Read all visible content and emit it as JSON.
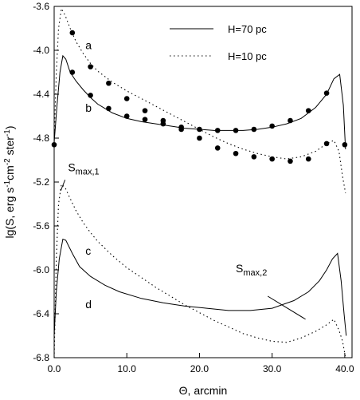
{
  "chart_data": {
    "type": "line",
    "xlabel": "Θ, arcmin",
    "ylabel_parts": [
      "lg(S, erg s",
      "-1",
      "cm",
      "-2",
      " ster",
      "-1",
      ")"
    ],
    "xlim": [
      0,
      41
    ],
    "ylim": [
      -6.8,
      -3.6
    ],
    "xticks": [
      0,
      10,
      20,
      30,
      40
    ],
    "xtick_labels": [
      "0.0",
      "10.0",
      "20.0",
      "30.0",
      "40.0"
    ],
    "yticks": [
      -6.8,
      -6.4,
      -6.0,
      -5.6,
      -5.2,
      -4.8,
      -4.4,
      -4.0,
      -3.6
    ],
    "ytick_labels": [
      "-6.8",
      "-6.4",
      "-6.0",
      "-5.6",
      "-5.2",
      "-4.8",
      "-4.4",
      "-4.0",
      "-3.6"
    ],
    "grid": false,
    "legend": {
      "placement": "top-right",
      "items": [
        {
          "label": "H=70 pc",
          "style": "solid"
        },
        {
          "label": "H=10 pc",
          "style": "dotted"
        }
      ]
    },
    "series": [
      {
        "name": "H=70 pc",
        "style": "solid",
        "x": [
          0.0,
          0.4,
          0.8,
          1.2,
          1.6,
          2.2,
          3.0,
          4.0,
          5.0,
          6.0,
          7.0,
          8.0,
          10.0,
          12.0,
          14.0,
          16.0,
          18.0,
          20.0,
          22.0,
          24.0,
          26.0,
          28.0,
          30.0,
          32.0,
          34.0,
          36.0,
          37.5,
          38.5,
          39.3,
          39.8,
          40.1
        ],
        "y": [
          -4.84,
          -4.5,
          -4.2,
          -4.05,
          -4.08,
          -4.2,
          -4.28,
          -4.36,
          -4.43,
          -4.49,
          -4.53,
          -4.57,
          -4.62,
          -4.65,
          -4.67,
          -4.69,
          -4.71,
          -4.72,
          -4.73,
          -4.73,
          -4.73,
          -4.72,
          -4.7,
          -4.67,
          -4.62,
          -4.52,
          -4.4,
          -4.26,
          -4.22,
          -4.5,
          -4.9
        ]
      },
      {
        "name": "H=10 pc",
        "style": "dotted",
        "x": [
          0.0,
          0.3,
          0.6,
          1.0,
          1.5,
          2.2,
          3.0,
          4.0,
          5.0,
          6.0,
          8.0,
          10.0,
          12.0,
          14.0,
          16.0,
          18.0,
          20.0,
          22.0,
          24.0,
          26.0,
          28.0,
          30.0,
          32.0,
          34.0,
          36.0,
          37.5,
          38.5,
          39.2,
          39.7,
          40.1
        ],
        "y": [
          -4.84,
          -4.2,
          -3.8,
          -3.62,
          -3.68,
          -3.8,
          -3.92,
          -4.03,
          -4.12,
          -4.19,
          -4.29,
          -4.37,
          -4.44,
          -4.51,
          -4.58,
          -4.65,
          -4.72,
          -4.79,
          -4.85,
          -4.9,
          -4.94,
          -4.97,
          -4.99,
          -4.97,
          -4.92,
          -4.85,
          -4.82,
          -4.92,
          -5.15,
          -5.3
        ]
      },
      {
        "name": "a (measured)",
        "style": "markers",
        "x": [
          2.5,
          5.0,
          7.5,
          10.0,
          12.5,
          15.0,
          17.5,
          20.0,
          22.5,
          25.0,
          27.5,
          30.0,
          32.5,
          35.0,
          37.5,
          40.0
        ],
        "y": [
          -3.84,
          -4.15,
          -4.3,
          -4.44,
          -4.55,
          -4.64,
          -4.72,
          -4.8,
          -4.89,
          -4.94,
          -4.97,
          -4.99,
          -5.01,
          -4.99,
          -4.85,
          -4.86
        ]
      },
      {
        "name": "b (measured)",
        "style": "markers",
        "x": [
          0.0,
          2.5,
          5.0,
          7.5,
          10.0,
          12.5,
          15.0,
          17.5,
          20.0,
          22.5,
          25.0,
          27.5,
          30.0,
          32.5,
          35.0,
          37.5
        ],
        "y": [
          -4.86,
          -4.2,
          -4.41,
          -4.53,
          -4.6,
          -4.63,
          -4.67,
          -4.7,
          -4.72,
          -4.73,
          -4.73,
          -4.72,
          -4.69,
          -4.64,
          -4.55,
          -4.39
        ]
      },
      {
        "name": "H=70 pc lower",
        "style": "solid",
        "x": [
          0.0,
          0.3,
          0.7,
          1.2,
          1.6,
          2.5,
          3.5,
          5.0,
          7.0,
          9.0,
          12.0,
          15.0,
          18.0,
          21.0,
          24.0,
          27.0,
          30.0,
          33.0,
          35.0,
          36.5,
          37.5,
          38.3,
          39.0,
          39.5,
          39.9,
          40.2
        ],
        "y": [
          -6.6,
          -6.2,
          -5.9,
          -5.72,
          -5.73,
          -5.85,
          -5.97,
          -6.06,
          -6.14,
          -6.2,
          -6.26,
          -6.3,
          -6.33,
          -6.35,
          -6.37,
          -6.37,
          -6.35,
          -6.28,
          -6.2,
          -6.1,
          -6.0,
          -5.9,
          -5.85,
          -6.1,
          -6.4,
          -6.6
        ]
      },
      {
        "name": "H=10 pc lower",
        "style": "dotted",
        "x": [
          0.0,
          0.3,
          0.6,
          1.0,
          1.5,
          2.2,
          3.0,
          4.0,
          5.0,
          6.0,
          8.0,
          10.0,
          12.0,
          14.0,
          16.0,
          18.0,
          20.0,
          22.0,
          24.0,
          26.0,
          28.0,
          30.0,
          32.0,
          34.0,
          36.0,
          37.5,
          38.5,
          39.2,
          39.7,
          40.1
        ],
        "y": [
          -6.8,
          -5.9,
          -5.4,
          -5.22,
          -5.25,
          -5.35,
          -5.46,
          -5.57,
          -5.66,
          -5.74,
          -5.87,
          -5.98,
          -6.07,
          -6.16,
          -6.24,
          -6.32,
          -6.39,
          -6.46,
          -6.52,
          -6.58,
          -6.62,
          -6.65,
          -6.66,
          -6.62,
          -6.56,
          -6.5,
          -6.45,
          -6.55,
          -6.65,
          -6.8
        ]
      }
    ],
    "annotations": [
      {
        "label": "a",
        "x": 4.3,
        "y": -3.99
      },
      {
        "label": "b",
        "x": 4.3,
        "y": -4.56
      },
      {
        "label": "c",
        "x": 4.3,
        "y": -5.86
      },
      {
        "label": "d",
        "x": 4.3,
        "y": -6.35
      }
    ],
    "callouts": [
      {
        "main": "S",
        "sub": "max,1",
        "x": 1.9,
        "y": -5.1,
        "x1": 1.5,
        "y1": -5.18,
        "x2": 0.9,
        "y2": -5.28
      },
      {
        "main": "S",
        "sub": "max,2",
        "x": 25.0,
        "y": -6.02,
        "x1": 29.4,
        "y1": -6.24,
        "x2": 34.6,
        "y2": -6.45
      }
    ]
  }
}
